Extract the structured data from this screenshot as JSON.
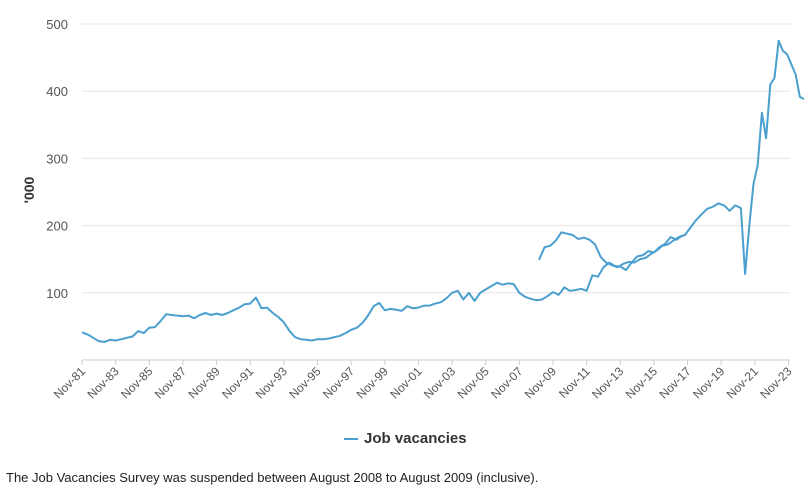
{
  "chart_data": {
    "type": "line",
    "ylabel": "'000",
    "ylim": [
      0,
      500
    ],
    "yticks": [
      100,
      200,
      300,
      400,
      500
    ],
    "xlim": [
      1981.83,
      2023.92
    ],
    "xticks": [
      {
        "value": 1981.83,
        "label": "Nov-81"
      },
      {
        "value": 1983.83,
        "label": "Nov-83"
      },
      {
        "value": 1985.83,
        "label": "Nov-85"
      },
      {
        "value": 1987.83,
        "label": "Nov-87"
      },
      {
        "value": 1989.83,
        "label": "Nov-89"
      },
      {
        "value": 1991.83,
        "label": "Nov-91"
      },
      {
        "value": 1993.83,
        "label": "Nov-93"
      },
      {
        "value": 1995.83,
        "label": "Nov-95"
      },
      {
        "value": 1997.83,
        "label": "Nov-97"
      },
      {
        "value": 1999.83,
        "label": "Nov-99"
      },
      {
        "value": 2001.83,
        "label": "Nov-01"
      },
      {
        "value": 2003.83,
        "label": "Nov-03"
      },
      {
        "value": 2005.83,
        "label": "Nov-05"
      },
      {
        "value": 2007.83,
        "label": "Nov-07"
      },
      {
        "value": 2009.83,
        "label": "Nov-09"
      },
      {
        "value": 2011.83,
        "label": "Nov-11"
      },
      {
        "value": 2013.83,
        "label": "Nov-13"
      },
      {
        "value": 2015.83,
        "label": "Nov-15"
      },
      {
        "value": 2017.83,
        "label": "Nov-17"
      },
      {
        "value": 2019.83,
        "label": "Nov-19"
      },
      {
        "value": 2021.83,
        "label": "Nov-21"
      },
      {
        "value": 2023.83,
        "label": "Nov-23"
      }
    ],
    "grid": true,
    "legend_position": "bottom-center",
    "series": [
      {
        "name": "Job vacancies",
        "color": "#4a9fcf",
        "segments": [
          [
            [
              1981.83,
              41
            ],
            [
              1982.17,
              38
            ],
            [
              1982.5,
              33
            ],
            [
              1982.83,
              28
            ],
            [
              1983.17,
              27
            ],
            [
              1983.5,
              30
            ],
            [
              1983.83,
              29
            ],
            [
              1984.17,
              31
            ],
            [
              1984.5,
              33
            ],
            [
              1984.83,
              35
            ],
            [
              1985.17,
              43
            ],
            [
              1985.5,
              40
            ],
            [
              1985.83,
              48
            ],
            [
              1986.17,
              49
            ],
            [
              1986.5,
              58
            ],
            [
              1986.83,
              68
            ],
            [
              1987.17,
              67
            ],
            [
              1987.5,
              66
            ],
            [
              1987.83,
              65
            ],
            [
              1988.17,
              66
            ],
            [
              1988.5,
              62
            ],
            [
              1988.83,
              67
            ],
            [
              1989.17,
              70
            ],
            [
              1989.5,
              67
            ],
            [
              1989.83,
              69
            ],
            [
              1990.17,
              67
            ],
            [
              1990.5,
              70
            ],
            [
              1990.83,
              74
            ],
            [
              1991.17,
              78
            ],
            [
              1991.5,
              83
            ],
            [
              1991.83,
              84
            ],
            [
              1992.17,
              93
            ],
            [
              1992.5,
              77
            ],
            [
              1992.83,
              78
            ],
            [
              1993.17,
              70
            ],
            [
              1993.5,
              64
            ],
            [
              1993.83,
              56
            ],
            [
              1994.17,
              43
            ],
            [
              1994.5,
              34
            ],
            [
              1994.83,
              31
            ],
            [
              1995.17,
              30
            ],
            [
              1995.5,
              29
            ],
            [
              1995.83,
              31
            ],
            [
              1996.17,
              31
            ],
            [
              1996.5,
              32
            ],
            [
              1996.83,
              34
            ],
            [
              1997.17,
              36
            ],
            [
              1997.5,
              40
            ],
            [
              1997.83,
              45
            ],
            [
              1998.17,
              48
            ],
            [
              1998.5,
              55
            ],
            [
              1998.83,
              66
            ],
            [
              1999.17,
              80
            ],
            [
              1999.5,
              85
            ],
            [
              1999.83,
              74
            ],
            [
              2000.17,
              76
            ],
            [
              2000.5,
              75
            ],
            [
              2000.83,
              73
            ],
            [
              2001.17,
              80
            ],
            [
              2001.5,
              77
            ],
            [
              2001.83,
              78
            ],
            [
              2002.17,
              81
            ],
            [
              2002.5,
              81
            ],
            [
              2002.83,
              84
            ],
            [
              2003.17,
              86
            ],
            [
              2003.5,
              92
            ],
            [
              2003.83,
              100
            ],
            [
              2004.17,
              103
            ],
            [
              2004.5,
              90
            ],
            [
              2004.83,
              100
            ],
            [
              2005.17,
              88
            ],
            [
              2005.5,
              100
            ],
            [
              2005.83,
              105
            ],
            [
              2006.17,
              110
            ],
            [
              2006.5,
              115
            ],
            [
              2006.83,
              112
            ],
            [
              2007.17,
              114
            ],
            [
              2007.5,
              113
            ],
            [
              2007.83,
              100
            ],
            [
              2008.17,
              94
            ],
            [
              2008.5,
              91
            ],
            [
              2008.83,
              89
            ],
            [
              2009.17,
              90
            ],
            [
              2009.5,
              95
            ],
            [
              2009.83,
              101
            ],
            [
              2010.17,
              97
            ],
            [
              2010.5,
              108
            ],
            [
              2010.83,
              103
            ],
            [
              2011.17,
              104
            ],
            [
              2011.5,
              106
            ],
            [
              2011.83,
              103
            ],
            [
              2012.17,
              126
            ],
            [
              2012.5,
              124
            ],
            [
              2012.83,
              138
            ],
            [
              2013.17,
              145
            ],
            [
              2013.5,
              140
            ],
            [
              2013.83,
              139
            ],
            [
              2014.17,
              134
            ],
            [
              2014.5,
              145
            ],
            [
              2014.83,
              154
            ],
            [
              2015.17,
              156
            ],
            [
              2015.5,
              162
            ],
            [
              2015.83,
              160
            ],
            [
              2016.17,
              168
            ],
            [
              2016.5,
              173
            ],
            [
              2016.83,
              183
            ],
            [
              2017.17,
              179
            ],
            [
              2017.5,
              185
            ]
          ],
          [
            [
              2009.0,
              149
            ],
            [
              2009.33,
              168
            ],
            [
              2009.67,
              170
            ],
            [
              2010.0,
              178
            ],
            [
              2010.33,
              190
            ],
            [
              2010.67,
              188
            ],
            [
              2011.0,
              186
            ],
            [
              2011.33,
              180
            ],
            [
              2011.67,
              182
            ],
            [
              2012.0,
              179
            ],
            [
              2012.33,
              172
            ],
            [
              2012.67,
              153
            ],
            [
              2013.0,
              145
            ],
            [
              2013.33,
              141
            ],
            [
              2013.67,
              138
            ],
            [
              2014.0,
              143
            ],
            [
              2014.33,
              146
            ],
            [
              2014.67,
              145
            ],
            [
              2015.0,
              150
            ],
            [
              2015.33,
              152
            ],
            [
              2015.67,
              158
            ],
            [
              2016.0,
              163
            ],
            [
              2016.33,
              170
            ],
            [
              2016.67,
              172
            ],
            [
              2017.0,
              178
            ],
            [
              2017.33,
              183
            ],
            [
              2017.67,
              186
            ],
            [
              2018.0,
              197
            ],
            [
              2018.33,
              208
            ],
            [
              2018.67,
              217
            ],
            [
              2019.0,
              225
            ],
            [
              2019.33,
              228
            ],
            [
              2019.67,
              233
            ],
            [
              2020.0,
              230
            ],
            [
              2020.33,
              222
            ],
            [
              2020.67,
              230
            ],
            [
              2021.0,
              226
            ],
            [
              2021.25,
              128
            ],
            [
              2021.5,
              200
            ],
            [
              2021.75,
              262
            ],
            [
              2022.0,
              290
            ],
            [
              2022.25,
              368
            ],
            [
              2022.5,
              330
            ],
            [
              2022.75,
              410
            ],
            [
              2023.0,
              420
            ],
            [
              2023.25,
              475
            ],
            [
              2023.5,
              460
            ],
            [
              2023.75,
              455
            ],
            [
              2024.0,
              440
            ],
            [
              2024.25,
              425
            ],
            [
              2024.5,
              392
            ],
            [
              2024.75,
              388
            ]
          ]
        ]
      }
    ]
  },
  "legend": {
    "label": "Job vacancies"
  },
  "footnote": "The Job Vacancies Survey was suspended between August 2008 to August 2009 (inclusive)."
}
